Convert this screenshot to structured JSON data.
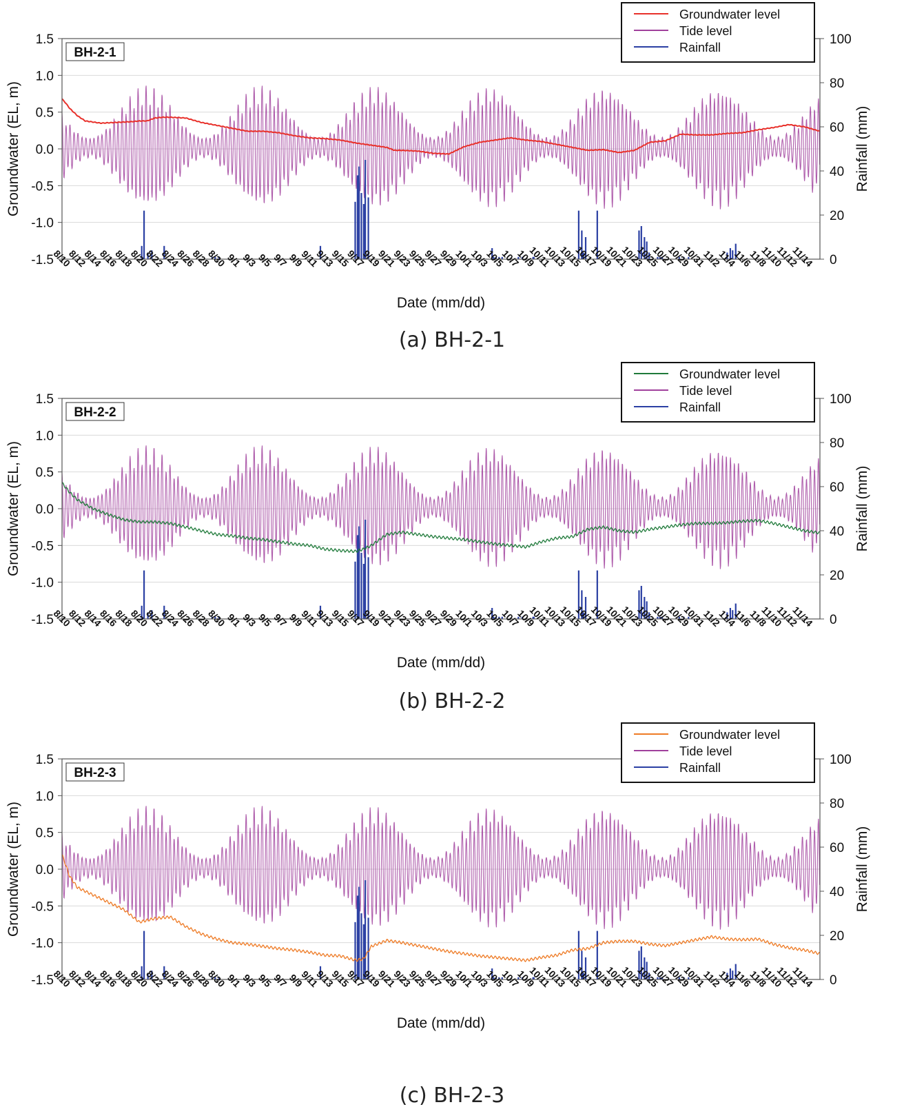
{
  "figure": {
    "colors": {
      "tide": "#a0409c",
      "rainfall": "#2a3fa3",
      "grid": "#d9d9d9",
      "axis": "#555555"
    }
  },
  "chart_data": [
    {
      "type": "line",
      "panel_label": "BH-2-1",
      "caption": "(a) BH-2-1",
      "xlabel": "Date (mm/dd)",
      "ylabel_left": "Groundwater (EL, m)",
      "ylabel_right": "Rainfall (mm)",
      "ylim_left": [
        -1.5,
        1.5
      ],
      "ylim_right": [
        0,
        100
      ],
      "yticks_left": [
        "1.5",
        "1.0",
        "0.5",
        "0.0",
        "-0.5",
        "-1.0",
        "-1.5"
      ],
      "yticks_right": [
        "100",
        "80",
        "60",
        "40",
        "20",
        "0"
      ],
      "x_tick_labels": [
        "8/10",
        "8/12",
        "8/14",
        "8/16",
        "8/18",
        "8/20",
        "8/22",
        "8/24",
        "8/26",
        "8/28",
        "8/30",
        "9/1",
        "9/3",
        "9/5",
        "9/7",
        "9/9",
        "9/11",
        "9/13",
        "9/15",
        "9/17",
        "9/19",
        "9/21",
        "9/23",
        "9/25",
        "9/27",
        "9/29",
        "10/1",
        "10/3",
        "10/5",
        "10/7",
        "10/9",
        "10/11",
        "10/13",
        "10/15",
        "10/17",
        "10/19",
        "10/21",
        "10/23",
        "10/25",
        "10/27",
        "10/29",
        "10/31",
        "11/2",
        "11/4",
        "11/6",
        "11/8",
        "11/10",
        "11/12",
        "11/14"
      ],
      "legend": [
        "Groundwater level",
        "Tide level",
        "Rainfall"
      ],
      "series": [
        {
          "name": "Groundwater level",
          "color": "#e8302a",
          "x_days": [
            0,
            0.5,
            1,
            2,
            3,
            5,
            7,
            9,
            10,
            11,
            12,
            13,
            14,
            16,
            18,
            20,
            22,
            24,
            26,
            28,
            30,
            32,
            34,
            36,
            38,
            40,
            42,
            43,
            44,
            46,
            48,
            50,
            52,
            54,
            56,
            58,
            60,
            62,
            64,
            66,
            68,
            70,
            72,
            74,
            76,
            78,
            80,
            82,
            84,
            86,
            88,
            90,
            92,
            94,
            96,
            98
          ],
          "values": [
            0.68,
            0.62,
            0.55,
            0.45,
            0.38,
            0.35,
            0.36,
            0.37,
            0.38,
            0.38,
            0.42,
            0.43,
            0.43,
            0.42,
            0.36,
            0.32,
            0.28,
            0.24,
            0.24,
            0.22,
            0.18,
            0.15,
            0.14,
            0.12,
            0.08,
            0.05,
            0.02,
            -0.02,
            -0.02,
            -0.03,
            -0.06,
            -0.07,
            0.03,
            0.09,
            0.12,
            0.15,
            0.12,
            0.1,
            0.06,
            0.02,
            -0.02,
            -0.01,
            -0.05,
            -0.02,
            0.09,
            0.11,
            0.2,
            0.19,
            0.19,
            0.21,
            0.22,
            0.26,
            0.29,
            0.33,
            0.3,
            0.24
          ]
        },
        {
          "name": "Tide level",
          "color": "#a0409c",
          "mean": 0.02,
          "min_amplitude": 0.12,
          "max_amplitude": 0.72,
          "spring_neap_days": 14.8,
          "first_spring_day": 11
        },
        {
          "name": "Rainfall",
          "color": "#2a3fa3",
          "unit": "mm",
          "x_days": [
            10.3,
            10.6,
            11.1,
            11.6,
            13.2,
            19.4,
            19.8,
            20.3,
            33.4,
            37.9,
            38.2,
            38.4,
            38.7,
            39.0,
            39.2,
            39.6,
            55.6,
            55.8,
            56.1,
            56.5,
            56.9,
            59.0,
            59.5,
            60.9,
            61.0,
            66.8,
            67.2,
            67.4,
            67.7,
            69.2,
            74.6,
            74.9,
            75.3,
            75.6,
            75.9,
            77.0,
            77.3,
            77.6,
            79.8,
            80.4,
            81.0,
            86.0,
            86.4,
            86.7,
            87.1
          ],
          "values": [
            6,
            22,
            3,
            4,
            6,
            1,
            1,
            1,
            6,
            26,
            38,
            42,
            30,
            25,
            45,
            28,
            5,
            1,
            1,
            1,
            1,
            1,
            1,
            1,
            1,
            22,
            13,
            3,
            10,
            22,
            13,
            15,
            10,
            8,
            3,
            1,
            1,
            1,
            1,
            1,
            1,
            3,
            5,
            4,
            7
          ]
        }
      ]
    },
    {
      "type": "line",
      "panel_label": "BH-2-2",
      "caption": "(b) BH-2-2",
      "xlabel": "Date (mm/dd)",
      "ylabel_left": "Groundwater (EL, m)",
      "ylabel_right": "Rainfall (mm)",
      "ylim_left": [
        -1.5,
        1.5
      ],
      "ylim_right": [
        0,
        100
      ],
      "yticks_left": [
        "1.5",
        "1.0",
        "0.5",
        "0.0",
        "-0.5",
        "-1.0",
        "-1.5"
      ],
      "yticks_right": [
        "100",
        "80",
        "60",
        "40",
        "20",
        "0"
      ],
      "x_tick_labels": [
        "8/10",
        "8/12",
        "8/14",
        "8/16",
        "8/18",
        "8/20",
        "8/22",
        "8/24",
        "8/26",
        "8/28",
        "8/30",
        "9/1",
        "9/3",
        "9/5",
        "9/7",
        "9/9",
        "9/11",
        "9/13",
        "9/15",
        "9/17",
        "9/19",
        "9/21",
        "9/23",
        "9/25",
        "9/27",
        "9/29",
        "10/1",
        "10/3",
        "10/5",
        "10/7",
        "10/9",
        "10/11",
        "10/13",
        "10/15",
        "10/17",
        "10/19",
        "10/21",
        "10/23",
        "10/25",
        "10/27",
        "10/29",
        "10/31",
        "11/2",
        "11/4",
        "11/6",
        "11/8",
        "11/10",
        "11/12",
        "11/14"
      ],
      "legend": [
        "Groundwater level",
        "Tide level",
        "Rainfall"
      ],
      "series": [
        {
          "name": "Groundwater level",
          "color": "#1f7a3a",
          "x_days": [
            0,
            1,
            2,
            4,
            6,
            8,
            10,
            12,
            14,
            16,
            18,
            20,
            22,
            24,
            26,
            28,
            30,
            32,
            34,
            36,
            38,
            39,
            40,
            42,
            44,
            46,
            48,
            50,
            52,
            54,
            56,
            58,
            60,
            62,
            64,
            66,
            68,
            70,
            72,
            74,
            76,
            78,
            80,
            82,
            84,
            86,
            88,
            90,
            92,
            94,
            96,
            98
          ],
          "values": [
            0.35,
            0.22,
            0.12,
            0.0,
            -0.08,
            -0.15,
            -0.18,
            -0.18,
            -0.2,
            -0.25,
            -0.3,
            -0.35,
            -0.37,
            -0.4,
            -0.42,
            -0.45,
            -0.48,
            -0.5,
            -0.55,
            -0.57,
            -0.58,
            -0.55,
            -0.5,
            -0.35,
            -0.32,
            -0.35,
            -0.38,
            -0.4,
            -0.42,
            -0.45,
            -0.48,
            -0.5,
            -0.52,
            -0.45,
            -0.4,
            -0.38,
            -0.28,
            -0.25,
            -0.3,
            -0.32,
            -0.28,
            -0.25,
            -0.22,
            -0.2,
            -0.2,
            -0.19,
            -0.17,
            -0.16,
            -0.2,
            -0.25,
            -0.3,
            -0.33
          ]
        },
        {
          "name": "Tide level",
          "color": "#a0409c",
          "mean": 0.02,
          "min_amplitude": 0.12,
          "max_amplitude": 0.72,
          "spring_neap_days": 14.8,
          "first_spring_day": 11
        },
        {
          "name": "Rainfall",
          "color": "#2a3fa3",
          "unit": "mm",
          "x_days": [
            10.3,
            10.6,
            11.1,
            11.6,
            13.2,
            19.4,
            19.8,
            20.3,
            33.4,
            37.9,
            38.2,
            38.4,
            38.7,
            39.0,
            39.2,
            39.6,
            55.6,
            55.8,
            56.1,
            56.5,
            56.9,
            59.0,
            59.5,
            60.9,
            61.0,
            66.8,
            67.2,
            67.4,
            67.7,
            69.2,
            74.6,
            74.9,
            75.3,
            75.6,
            75.9,
            77.0,
            77.3,
            77.6,
            79.8,
            80.4,
            81.0,
            86.0,
            86.4,
            86.7,
            87.1
          ],
          "values": [
            6,
            22,
            3,
            4,
            6,
            1,
            1,
            1,
            6,
            26,
            38,
            42,
            30,
            25,
            45,
            28,
            5,
            1,
            1,
            1,
            1,
            1,
            1,
            1,
            1,
            22,
            13,
            3,
            10,
            22,
            13,
            15,
            10,
            8,
            3,
            1,
            1,
            1,
            1,
            1,
            1,
            3,
            5,
            4,
            7
          ]
        }
      ]
    },
    {
      "type": "line",
      "panel_label": "BH-2-3",
      "caption": "(c) BH-2-3",
      "xlabel": "Date (mm/dd)",
      "ylabel_left": "Groundwater (EL, m)",
      "ylabel_right": "Rainfall (mm)",
      "ylim_left": [
        -1.5,
        1.5
      ],
      "ylim_right": [
        0,
        100
      ],
      "yticks_left": [
        "1.5",
        "1.0",
        "0.5",
        "0.0",
        "-0.5",
        "-1.0",
        "-1.5"
      ],
      "yticks_right": [
        "100",
        "80",
        "60",
        "40",
        "20",
        "0"
      ],
      "x_tick_labels": [
        "8/10",
        "8/12",
        "8/14",
        "8/16",
        "8/18",
        "8/20",
        "8/22",
        "8/24",
        "8/26",
        "8/28",
        "8/30",
        "9/1",
        "9/3",
        "9/5",
        "9/7",
        "9/9",
        "9/11",
        "9/13",
        "9/15",
        "9/17",
        "9/19",
        "9/21",
        "9/23",
        "9/25",
        "9/27",
        "9/29",
        "10/1",
        "10/3",
        "10/5",
        "10/7",
        "10/9",
        "10/11",
        "10/13",
        "10/15",
        "10/17",
        "10/19",
        "10/21",
        "10/23",
        "10/25",
        "10/27",
        "10/29",
        "10/31",
        "11/2",
        "11/4",
        "11/6",
        "11/8",
        "11/10",
        "11/12",
        "11/14"
      ],
      "legend": [
        "Groundwater level",
        "Tide level",
        "Rainfall"
      ],
      "series": [
        {
          "name": "Groundwater level",
          "color": "#ee7a24",
          "x_days": [
            0,
            1,
            2,
            4,
            6,
            8,
            10,
            12,
            14,
            16,
            18,
            20,
            22,
            24,
            26,
            28,
            30,
            32,
            34,
            36,
            38,
            39,
            40,
            42,
            44,
            46,
            48,
            50,
            52,
            54,
            56,
            58,
            60,
            62,
            64,
            66,
            68,
            70,
            72,
            74,
            76,
            78,
            80,
            82,
            84,
            86,
            88,
            90,
            92,
            94,
            96,
            98
          ],
          "values": [
            0.2,
            -0.1,
            -0.25,
            -0.35,
            -0.45,
            -0.55,
            -0.72,
            -0.67,
            -0.65,
            -0.78,
            -0.88,
            -0.95,
            -1.0,
            -1.02,
            -1.05,
            -1.08,
            -1.1,
            -1.13,
            -1.17,
            -1.18,
            -1.24,
            -1.22,
            -1.05,
            -0.97,
            -1.0,
            -1.04,
            -1.08,
            -1.12,
            -1.15,
            -1.18,
            -1.2,
            -1.22,
            -1.24,
            -1.2,
            -1.17,
            -1.1,
            -1.08,
            -1.0,
            -0.98,
            -0.98,
            -1.02,
            -1.04,
            -1.0,
            -0.96,
            -0.92,
            -0.95,
            -0.96,
            -0.95,
            -1.02,
            -1.07,
            -1.1,
            -1.15
          ]
        },
        {
          "name": "Tide level",
          "color": "#a0409c",
          "mean": 0.02,
          "min_amplitude": 0.12,
          "max_amplitude": 0.72,
          "spring_neap_days": 14.8,
          "first_spring_day": 11
        },
        {
          "name": "Rainfall",
          "color": "#2a3fa3",
          "unit": "mm",
          "x_days": [
            10.3,
            10.6,
            11.1,
            11.6,
            13.2,
            19.4,
            19.8,
            20.3,
            33.4,
            37.9,
            38.2,
            38.4,
            38.7,
            39.0,
            39.2,
            39.6,
            55.6,
            55.8,
            56.1,
            56.5,
            56.9,
            59.0,
            59.5,
            60.9,
            61.0,
            66.8,
            67.2,
            67.4,
            67.7,
            69.2,
            74.6,
            74.9,
            75.3,
            75.6,
            75.9,
            77.0,
            77.3,
            77.6,
            79.8,
            80.4,
            81.0,
            86.0,
            86.4,
            86.7,
            87.1
          ],
          "values": [
            6,
            22,
            3,
            4,
            6,
            1,
            1,
            1,
            6,
            26,
            38,
            42,
            30,
            25,
            45,
            28,
            5,
            1,
            1,
            1,
            1,
            1,
            1,
            1,
            1,
            22,
            13,
            3,
            10,
            22,
            13,
            15,
            10,
            8,
            3,
            1,
            1,
            1,
            1,
            1,
            1,
            3,
            5,
            4,
            7
          ]
        }
      ]
    }
  ]
}
